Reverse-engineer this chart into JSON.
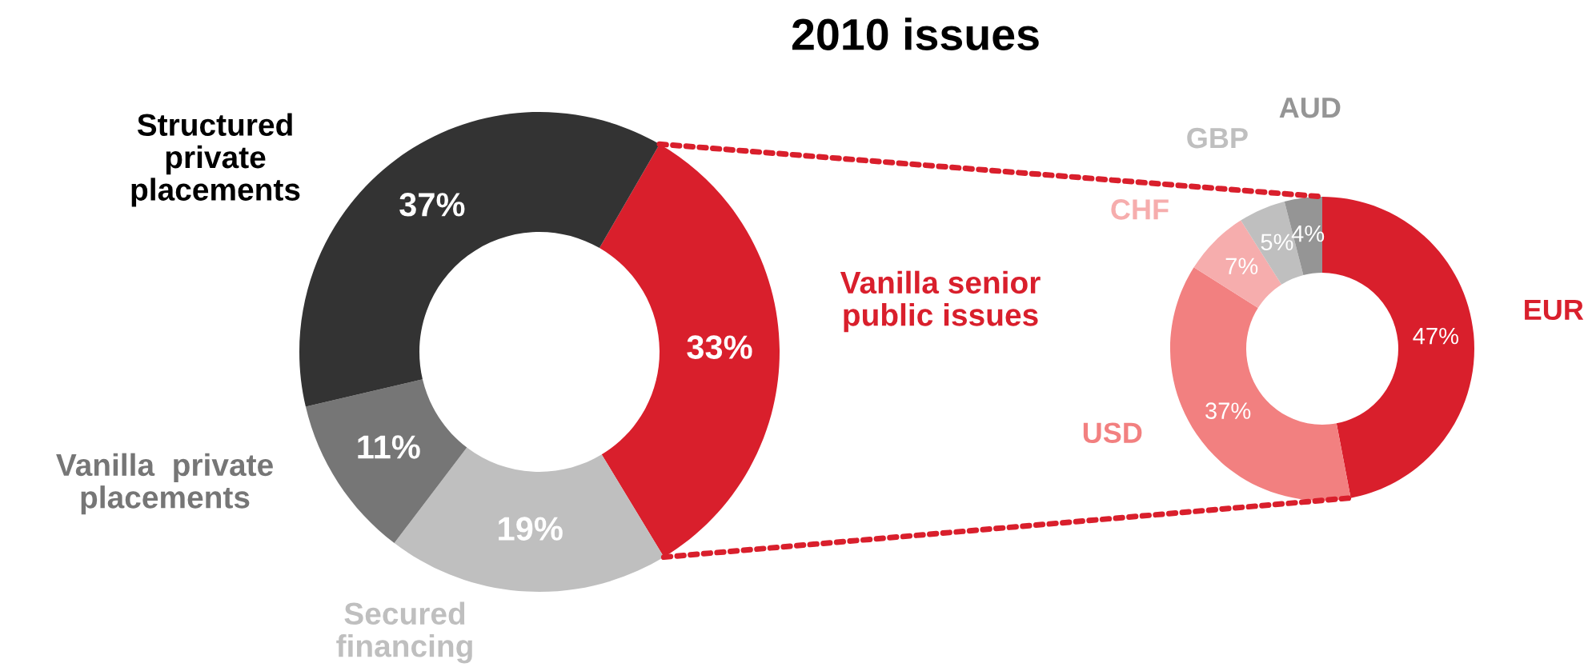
{
  "chart_data": [
    {
      "type": "donut",
      "title": "2010 issues",
      "categories": [
        "Vanilla senior public issues",
        "Secured financing",
        "Vanilla  private placements",
        "Structured private placements"
      ],
      "values": [
        33,
        19,
        11,
        37
      ],
      "colors": [
        "#d91f2c",
        "#bfbfbf",
        "#767676",
        "#333333"
      ],
      "value_labels": [
        "33%",
        "19%",
        "11%",
        "37%"
      ]
    },
    {
      "type": "donut",
      "categories": [
        "EUR",
        "USD",
        "CHF",
        "GBP",
        "AUD"
      ],
      "values": [
        47,
        37,
        7,
        5,
        4
      ],
      "colors": [
        "#d91f2c",
        "#f28080",
        "#f6adad",
        "#bfbfbf",
        "#959595"
      ],
      "value_labels": [
        "47%",
        "37%",
        "7%",
        "5%",
        "4%"
      ]
    }
  ]
}
